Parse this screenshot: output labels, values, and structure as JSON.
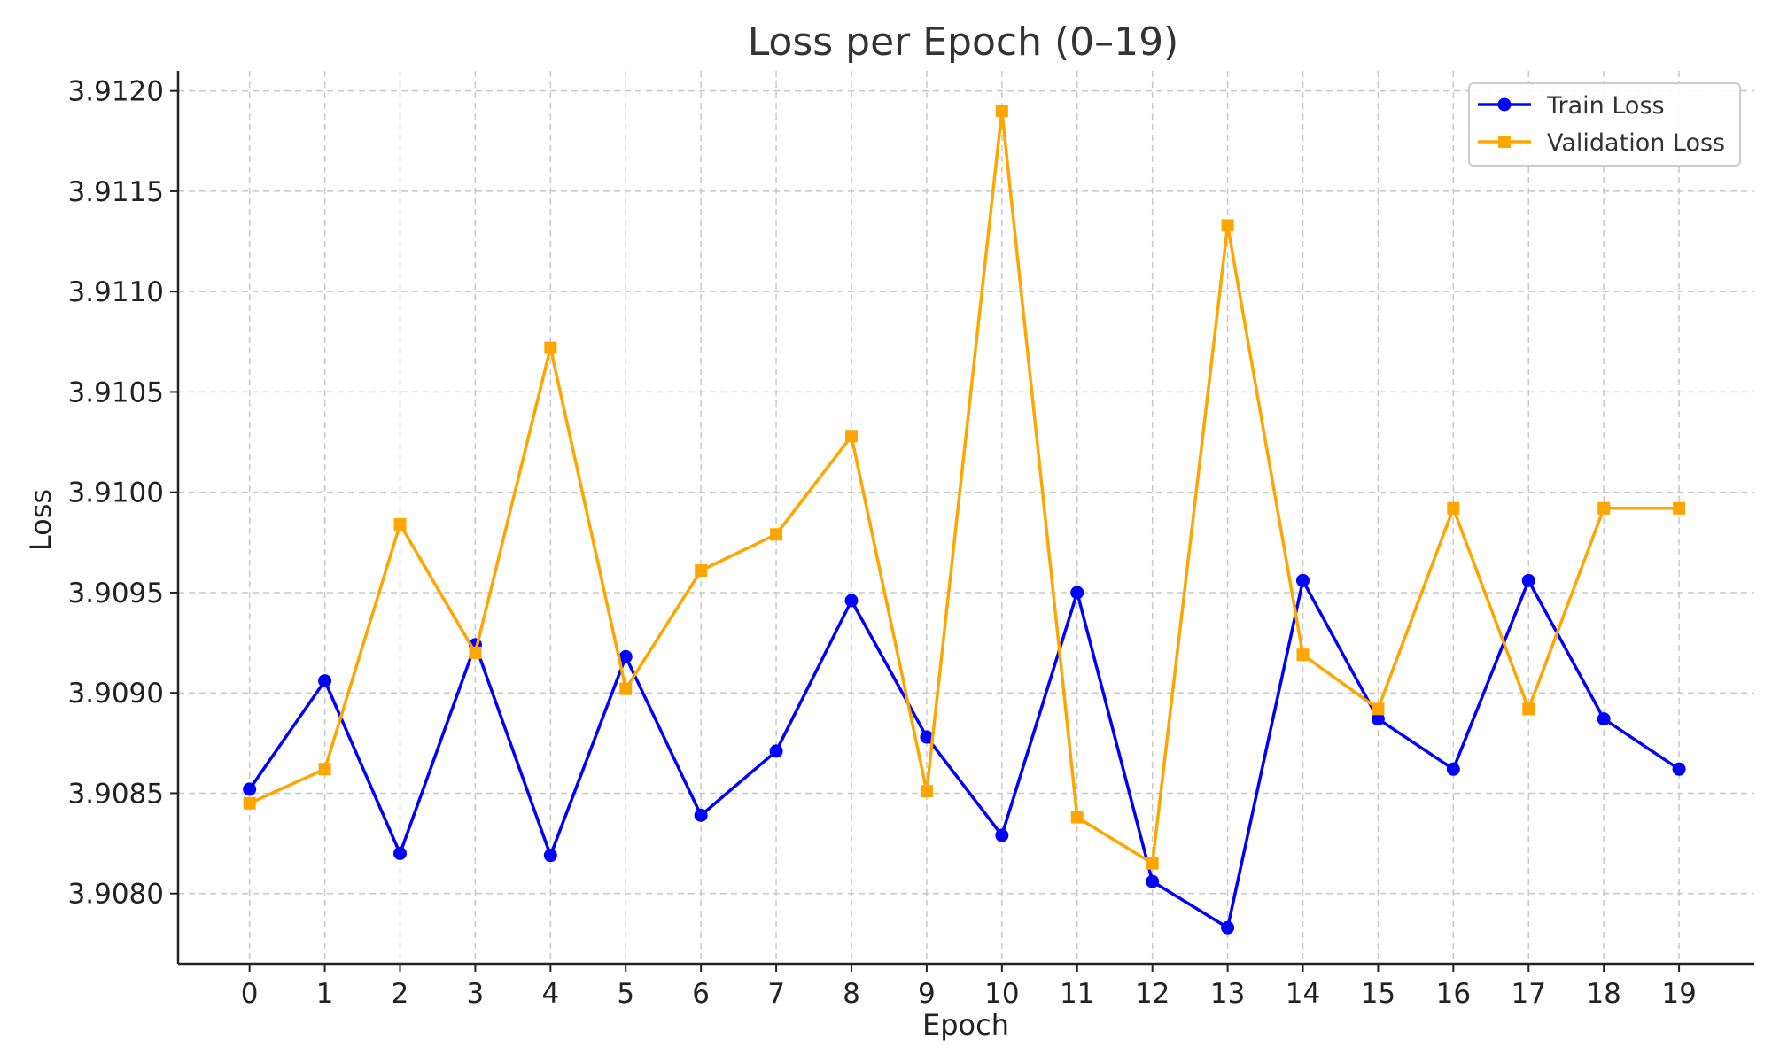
{
  "chart_data": {
    "type": "line",
    "title": "Loss per Epoch (0–19)",
    "xlabel": "Epoch",
    "ylabel": "Loss",
    "x": [
      0,
      1,
      2,
      3,
      4,
      5,
      6,
      7,
      8,
      9,
      10,
      11,
      12,
      13,
      14,
      15,
      16,
      17,
      18,
      19
    ],
    "xticks": [
      "0",
      "1",
      "2",
      "3",
      "4",
      "5",
      "6",
      "7",
      "8",
      "9",
      "10",
      "11",
      "12",
      "13",
      "14",
      "15",
      "16",
      "17",
      "18",
      "19"
    ],
    "xlim": [
      -0.95,
      20.0
    ],
    "yticks": [
      "3.9080",
      "3.9085",
      "3.9090",
      "3.9095",
      "3.9100",
      "3.9105",
      "3.9110",
      "3.9115",
      "3.9120"
    ],
    "ylim": [
      3.90765,
      3.9121
    ],
    "grid": true,
    "legend_position": "top-right",
    "series": [
      {
        "name": "Train Loss",
        "color": "#0000ff",
        "marker": "circle",
        "values": [
          3.90852,
          3.90906,
          3.9082,
          3.90924,
          3.90819,
          3.90918,
          3.90839,
          3.90871,
          3.90946,
          3.90878,
          3.90829,
          3.9095,
          3.90806,
          3.90783,
          3.90956,
          3.90887,
          3.90862,
          3.90956,
          3.90887,
          3.90862
        ]
      },
      {
        "name": "Validation Loss",
        "color": "#ffa500",
        "marker": "square",
        "values": [
          3.90845,
          3.90862,
          3.90984,
          3.9092,
          3.91072,
          3.90902,
          3.90961,
          3.90979,
          3.91028,
          3.90851,
          3.9119,
          3.90838,
          3.90815,
          3.91133,
          3.90919,
          3.90892,
          3.90992,
          3.90892,
          3.90992,
          3.90992
        ]
      }
    ]
  }
}
